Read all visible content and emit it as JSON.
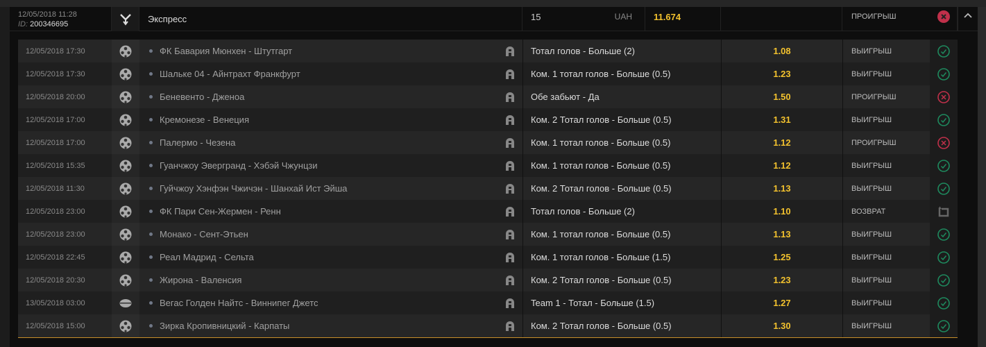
{
  "header": {
    "datetime": "12/05/2018 11:28",
    "id_label": "ID:",
    "id": "200346695",
    "type_icon": "express-icon",
    "title": "Экспресс",
    "stake": "15",
    "currency": "UAH",
    "total_odds": "11.674",
    "status": "ПРОИГРЫШ",
    "status_icon": "lost-icon"
  },
  "colors": {
    "odds": "#f2c12e",
    "win": "#1e8a5e",
    "lose": "#c0304a",
    "accent_line": "#c88f2a"
  },
  "events": [
    {
      "date": "12/05/2018 17:30",
      "sport": "soccer",
      "match": "ФК Бавария Мюнхен  -  Штутгарт",
      "bet": "Тотал голов - Больше (2)",
      "odds": "1.08",
      "status": "ВЫИГРЫШ",
      "result": "win"
    },
    {
      "date": "12/05/2018 17:30",
      "sport": "soccer",
      "match": "Шальке 04  -  Айнтрахт Франкфурт",
      "bet": "Ком. 1 тотал голов - Больше (0.5)",
      "odds": "1.23",
      "status": "ВЫИГРЫШ",
      "result": "win"
    },
    {
      "date": "12/05/2018 20:00",
      "sport": "soccer",
      "match": "Беневенто  -  Дженоа",
      "bet": "Обе забьют - Да",
      "odds": "1.50",
      "status": "ПРОИГРЫШ",
      "result": "lose"
    },
    {
      "date": "12/05/2018 17:00",
      "sport": "soccer",
      "match": "Кремонезе  -  Венеция",
      "bet": "Ком. 2 Тотал голов - Больше (0.5)",
      "odds": "1.31",
      "status": "ВЫИГРЫШ",
      "result": "win"
    },
    {
      "date": "12/05/2018 17:00",
      "sport": "soccer",
      "match": "Палермо  -  Чезена",
      "bet": "Ком. 1 тотал голов - Больше (0.5)",
      "odds": "1.12",
      "status": "ПРОИГРЫШ",
      "result": "lose"
    },
    {
      "date": "12/05/2018 15:35",
      "sport": "soccer",
      "match": "Гуанчжоу Эвергранд  -  Хэбэй Чжунцзи",
      "bet": "Ком. 1 тотал голов - Больше (0.5)",
      "odds": "1.12",
      "status": "ВЫИГРЫШ",
      "result": "win"
    },
    {
      "date": "12/05/2018 11:30",
      "sport": "soccer",
      "match": "Гуйчжоу Хэнфэн Чжичэн  -  Шанхай Ист Эйша",
      "bet": "Ком. 2 Тотал голов - Больше (0.5)",
      "odds": "1.13",
      "status": "ВЫИГРЫШ",
      "result": "win"
    },
    {
      "date": "12/05/2018 23:00",
      "sport": "soccer",
      "match": "ФК Пари Сен-Жермен  -  Ренн",
      "bet": "Тотал голов - Больше (2)",
      "odds": "1.10",
      "status": "ВОЗВРАТ",
      "result": "refund"
    },
    {
      "date": "12/05/2018 23:00",
      "sport": "soccer",
      "match": "Монако  -  Сент-Этьен",
      "bet": "Ком. 1 тотал голов - Больше (0.5)",
      "odds": "1.13",
      "status": "ВЫИГРЫШ",
      "result": "win"
    },
    {
      "date": "12/05/2018 22:45",
      "sport": "soccer",
      "match": "Реал Мадрид  -  Сельта",
      "bet": "Ком. 1 тотал голов - Больше (1.5)",
      "odds": "1.25",
      "status": "ВЫИГРЫШ",
      "result": "win"
    },
    {
      "date": "12/05/2018 20:30",
      "sport": "soccer",
      "match": "Жирона  -  Валенсия",
      "bet": "Ком. 2 Тотал голов - Больше (0.5)",
      "odds": "1.23",
      "status": "ВЫИГРЫШ",
      "result": "win"
    },
    {
      "date": "13/05/2018 03:00",
      "sport": "hockey",
      "match": "Вегас Голден Найтс  -  Виннипег Джетс",
      "bet": "Team 1 - Тотал - Больше (1.5)",
      "odds": "1.27",
      "status": "ВЫИГРЫШ",
      "result": "win"
    },
    {
      "date": "12/05/2018 15:00",
      "sport": "soccer",
      "match": "Зирка Кропивницкий  -  Карпаты",
      "bet": "Ком. 2 Тотал голов - Больше (0.5)",
      "odds": "1.30",
      "status": "ВЫИГРЫШ",
      "result": "win"
    }
  ]
}
